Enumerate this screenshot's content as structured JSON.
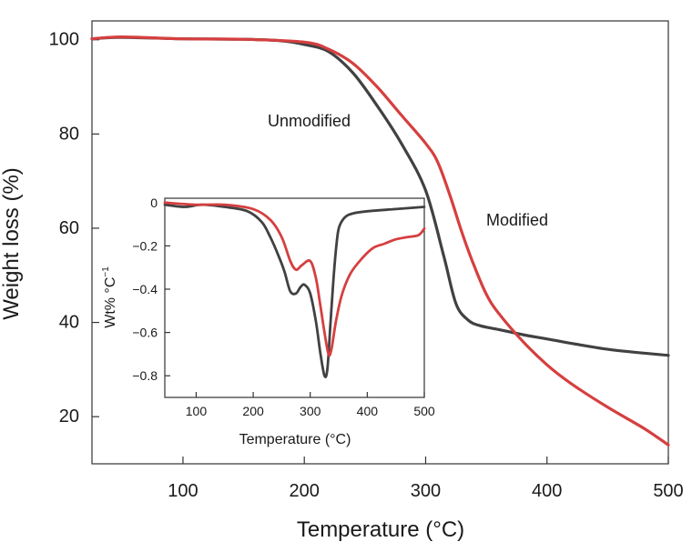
{
  "chart_data": [
    {
      "type": "line",
      "title": "",
      "xlabel": "Temperature (°C)",
      "ylabel": "Weight loss (%)",
      "xlim": [
        25,
        500
      ],
      "ylim": [
        10,
        104
      ],
      "xticks": [
        100,
        200,
        300,
        400,
        500
      ],
      "yticks": [
        20,
        40,
        60,
        80,
        100
      ],
      "xtick_labels": [
        "100",
        "200",
        "300",
        "400",
        "500"
      ],
      "ytick_labels": [
        "20",
        "40",
        "60",
        "80",
        "100"
      ],
      "colors": {
        "Unmodified": "#414143",
        "Modified": "#d63f3f"
      },
      "series": [
        {
          "name": "Unmodified",
          "label": "Unmodified",
          "x": [
            25,
            50,
            100,
            150,
            180,
            200,
            220,
            240,
            260,
            280,
            300,
            315,
            325,
            335,
            345,
            360,
            380,
            400,
            450,
            500
          ],
          "values": [
            100.2,
            100.5,
            100.2,
            100.1,
            99.8,
            99.0,
            97.5,
            93.0,
            86.0,
            78.0,
            68.0,
            54.0,
            44.0,
            40.5,
            39.3,
            38.5,
            37.4,
            36.5,
            34.3,
            33.0
          ]
        },
        {
          "name": "Modified",
          "label": "Modified",
          "x": [
            25,
            50,
            100,
            150,
            200,
            220,
            240,
            260,
            280,
            300,
            310,
            320,
            330,
            340,
            350,
            360,
            380,
            400,
            420,
            450,
            480,
            500
          ],
          "values": [
            100.2,
            100.6,
            100.2,
            100.1,
            99.5,
            98.0,
            95.0,
            90.0,
            84.0,
            78.0,
            74.0,
            67.0,
            59.0,
            52.0,
            46.0,
            42.0,
            36.0,
            31.0,
            27.0,
            22.0,
            17.5,
            14.0
          ]
        }
      ]
    },
    {
      "type": "line",
      "title": "",
      "xlabel": "Temperature (°C)",
      "ylabel": "Wt% °C",
      "ylabel_superscript": "−1",
      "xlim": [
        45,
        500
      ],
      "ylim": [
        -0.9,
        0.02
      ],
      "xticks": [
        100,
        200,
        300,
        400,
        500
      ],
      "yticks": [
        0,
        -0.2,
        -0.4,
        -0.6,
        -0.8
      ],
      "xtick_labels": [
        "100",
        "200",
        "300",
        "400",
        "500"
      ],
      "ytick_labels": [
        "0",
        "−0.2",
        "−0.4",
        "−0.6",
        "−0.8"
      ],
      "colors": {
        "Unmodified": "#414143",
        "Modified": "#d63f3f"
      },
      "series": [
        {
          "name": "Unmodified",
          "x": [
            45,
            80,
            110,
            150,
            190,
            215,
            230,
            245,
            255,
            265,
            275,
            283,
            290,
            300,
            310,
            318,
            325,
            330,
            335,
            340,
            345,
            350,
            360,
            375,
            400,
            450,
            500
          ],
          "values": [
            -0.01,
            -0.02,
            -0.01,
            -0.02,
            -0.04,
            -0.09,
            -0.16,
            -0.25,
            -0.32,
            -0.41,
            -0.42,
            -0.39,
            -0.38,
            -0.42,
            -0.55,
            -0.7,
            -0.8,
            -0.77,
            -0.58,
            -0.38,
            -0.22,
            -0.12,
            -0.07,
            -0.05,
            -0.04,
            -0.03,
            -0.02
          ]
        },
        {
          "name": "Modified",
          "x": [
            45,
            100,
            150,
            200,
            230,
            250,
            265,
            275,
            285,
            300,
            310,
            318,
            325,
            332,
            337,
            345,
            355,
            370,
            390,
            410,
            430,
            450,
            470,
            490,
            500
          ],
          "values": [
            0.0,
            -0.01,
            -0.01,
            -0.03,
            -0.08,
            -0.16,
            -0.27,
            -0.31,
            -0.29,
            -0.27,
            -0.35,
            -0.48,
            -0.6,
            -0.7,
            -0.68,
            -0.55,
            -0.43,
            -0.33,
            -0.26,
            -0.21,
            -0.19,
            -0.17,
            -0.16,
            -0.15,
            -0.12
          ]
        }
      ]
    }
  ]
}
